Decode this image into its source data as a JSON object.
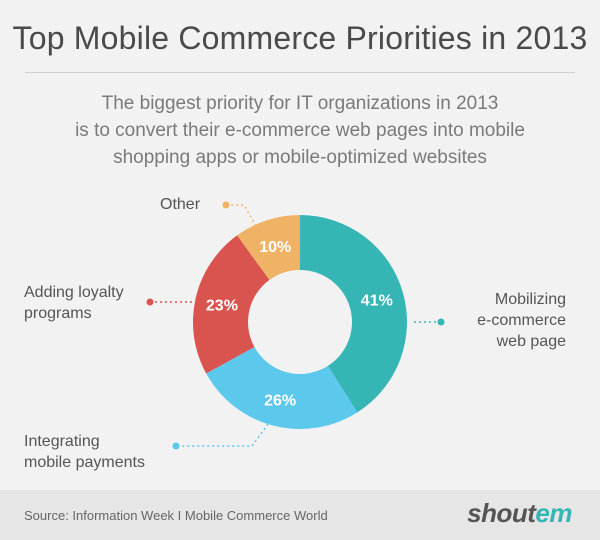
{
  "header": {
    "title": "Top Mobile Commerce Priorities in 2013",
    "subtitle_lines": [
      "The biggest priority for IT organizations in 2013",
      "is to convert their e-commerce web pages into mobile",
      "shopping apps or mobile-optimized websites"
    ]
  },
  "chart_data": {
    "type": "pie",
    "style": "donut",
    "title": "Top Mobile Commerce Priorities in 2013",
    "slices": [
      {
        "label_lines": [
          "Mobilizing",
          "e-commerce",
          "web page"
        ],
        "value": 41,
        "value_label": "41%",
        "color": "#35b6b5"
      },
      {
        "label_lines": [
          "Integrating",
          "mobile payments"
        ],
        "value": 26,
        "value_label": "26%",
        "color": "#5bc8ec"
      },
      {
        "label_lines": [
          "Adding loyalty",
          "programs"
        ],
        "value": 23,
        "value_label": "23%",
        "color": "#d9534f"
      },
      {
        "label_lines": [
          "Other"
        ],
        "value": 10,
        "value_label": "10%",
        "color": "#f0b366"
      }
    ]
  },
  "footer": {
    "source": "Source: Information Week I Mobile Commerce World",
    "brand_prefix": "shout",
    "brand_suffix": "em"
  }
}
